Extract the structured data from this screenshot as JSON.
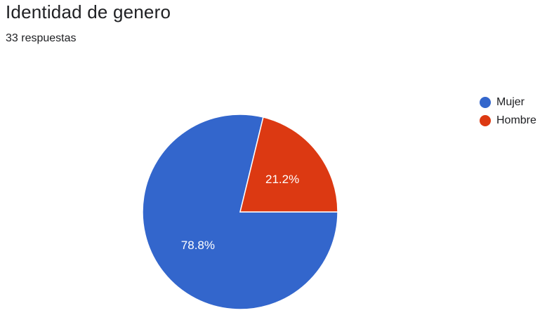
{
  "header": {
    "title": "Identidad de genero",
    "subtitle": "33 respuestas"
  },
  "chart_data": {
    "type": "pie",
    "title": "Identidad de genero",
    "subtitle": "33 respuestas",
    "slices": [
      {
        "label": "Mujer",
        "value": 78.8,
        "display": "78.8%",
        "color": "#3366cc"
      },
      {
        "label": "Hombre",
        "value": 21.2,
        "display": "21.2%",
        "color": "#dc3912"
      }
    ],
    "legend_position": "right"
  }
}
